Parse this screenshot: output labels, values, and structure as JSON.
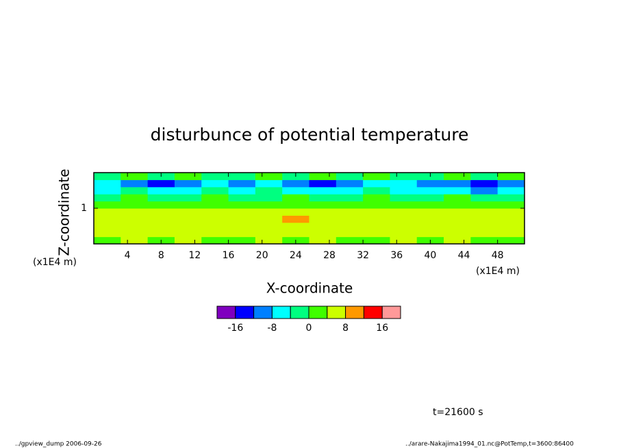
{
  "chart_data": {
    "type": "heatmap",
    "title": "disturbunce of potential temperature",
    "xlabel": "X-coordinate",
    "ylabel": "Z-coordinate",
    "xunit": "(x1E4 m)",
    "yunit": "(x1E4 m)",
    "xlim": [
      0,
      51.2
    ],
    "ylim": [
      0,
      2
    ],
    "xticks": [
      4,
      8,
      12,
      16,
      20,
      24,
      28,
      32,
      36,
      40,
      44,
      48
    ],
    "yticks": [
      1
    ],
    "x": [
      1.6,
      4.8,
      8,
      11.2,
      14.4,
      17.6,
      20.8,
      24,
      27.2,
      30.4,
      33.6,
      36.8,
      40,
      43.2,
      46.4,
      49.6
    ],
    "y": [
      0.1,
      0.3,
      0.5,
      0.7,
      0.9,
      1.1,
      1.3,
      1.5,
      1.7,
      1.9
    ],
    "z": [
      [
        3,
        5,
        3,
        5,
        3,
        3,
        5,
        3,
        5,
        3,
        3,
        5,
        3,
        5,
        3,
        3
      ],
      [
        6,
        6,
        6,
        6,
        6,
        6,
        6,
        6,
        6,
        6,
        6,
        6,
        6,
        6,
        6,
        6
      ],
      [
        6,
        6,
        6,
        6,
        6,
        6,
        6,
        6,
        6,
        6,
        6,
        6,
        6,
        6,
        6,
        6
      ],
      [
        6,
        6,
        6,
        6,
        6,
        6,
        6,
        9,
        6,
        6,
        6,
        6,
        6,
        6,
        6,
        6
      ],
      [
        6,
        6,
        6,
        6,
        6,
        6,
        6,
        6,
        6,
        6,
        6,
        6,
        6,
        6,
        6,
        6
      ],
      [
        2,
        3,
        2,
        2,
        3,
        2,
        2,
        3,
        2,
        2,
        3,
        2,
        2,
        3,
        2,
        2
      ],
      [
        -2,
        2,
        -2,
        -1,
        2,
        -2,
        -1,
        2,
        -2,
        -1,
        2,
        -2,
        -1,
        2,
        -2,
        -2
      ],
      [
        -5,
        -3,
        -5,
        -6,
        -3,
        -5,
        -3,
        -5,
        -6,
        -5,
        -3,
        -5,
        -6,
        -5,
        -10,
        -6
      ],
      [
        -6,
        -10,
        -13,
        -10,
        -6,
        -10,
        -6,
        -10,
        -13,
        -10,
        -6,
        -6,
        -10,
        -10,
        -13,
        -10
      ],
      [
        -2,
        1,
        -2,
        1,
        -2,
        -2,
        1,
        -2,
        1,
        -2,
        1,
        -2,
        -2,
        1,
        -2,
        1
      ]
    ],
    "levels": [
      -20,
      -16,
      -12,
      -8,
      -4,
      0,
      4,
      8,
      12,
      16,
      20
    ],
    "colors": [
      "#7f00bf",
      "#0000ff",
      "#0080ff",
      "#00ffff",
      "#00ff80",
      "#40ff00",
      "#ccff00",
      "#ff9900",
      "#ff0000",
      "#ff9999"
    ],
    "colorbar_ticks": [
      -16,
      -8,
      0,
      8,
      16
    ],
    "annotation": "t=21600 s",
    "footer_left": "../gpview_dump  2006-09-26",
    "footer_right": "../arare-Nakajima1994_01.nc@PotTemp,t=3600:86400"
  }
}
